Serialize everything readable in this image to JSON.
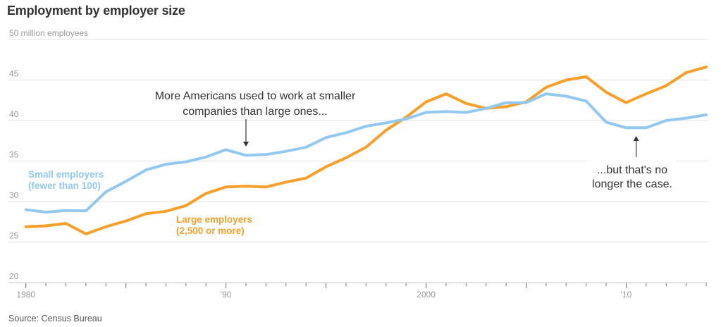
{
  "chart_data": {
    "type": "line",
    "title": "Employment by employer size",
    "ylabel": "50 million employees",
    "ylim": [
      20,
      50
    ],
    "yticks": [
      20,
      25,
      30,
      35,
      40,
      45,
      50
    ],
    "ytick_labels": [
      "20",
      "25",
      "30",
      "35",
      "40",
      "45",
      "50 million employees"
    ],
    "xlim": [
      1980,
      2014
    ],
    "xtick_labels": [
      {
        "year": 1980,
        "label": "1980"
      },
      {
        "year": 1990,
        "label": "'90"
      },
      {
        "year": 2000,
        "label": "2000"
      },
      {
        "year": 2010,
        "label": "'10"
      }
    ],
    "grid": true,
    "x": [
      1980,
      1981,
      1982,
      1983,
      1984,
      1985,
      1986,
      1987,
      1988,
      1989,
      1990,
      1991,
      1992,
      1993,
      1994,
      1995,
      1996,
      1997,
      1998,
      1999,
      2000,
      2001,
      2002,
      2003,
      2004,
      2005,
      2006,
      2007,
      2008,
      2009,
      2010,
      2011,
      2012,
      2013,
      2014
    ],
    "series": [
      {
        "name": "Small employers",
        "label_lines": [
          "Small employers",
          "(fewer than 100)"
        ],
        "color": "#93c9ee",
        "values": [
          29.0,
          28.7,
          28.9,
          28.85,
          31.2,
          32.5,
          33.9,
          34.6,
          34.9,
          35.5,
          36.4,
          35.7,
          35.8,
          36.2,
          36.7,
          37.9,
          38.5,
          39.3,
          39.7,
          40.2,
          41.0,
          41.1,
          41.0,
          41.5,
          42.2,
          42.2,
          43.3,
          43.0,
          42.4,
          39.8,
          39.1,
          39.1,
          40.0,
          40.3,
          40.7
        ]
      },
      {
        "name": "Large employers",
        "label_lines": [
          "Large employers",
          "(2,500 or more)"
        ],
        "color": "#f6a02b",
        "values": [
          26.9,
          27.0,
          27.3,
          26.0,
          26.9,
          27.6,
          28.5,
          28.8,
          29.5,
          31.0,
          31.8,
          31.9,
          31.8,
          32.4,
          32.9,
          34.3,
          35.4,
          36.7,
          38.8,
          40.4,
          42.3,
          43.3,
          42.1,
          41.5,
          41.7,
          42.3,
          44.1,
          45.0,
          45.4,
          43.5,
          42.2,
          43.3,
          44.3,
          45.9,
          46.6
        ]
      }
    ],
    "annotations": [
      {
        "lines": [
          "More Americans used to work at smaller",
          "companies than large ones..."
        ],
        "year": 1991,
        "arrow": "down"
      },
      {
        "lines": [
          "...but that's no",
          "longer the case."
        ],
        "year": 2010.5,
        "arrow": "up"
      }
    ],
    "source": "Source: Census Bureau"
  }
}
